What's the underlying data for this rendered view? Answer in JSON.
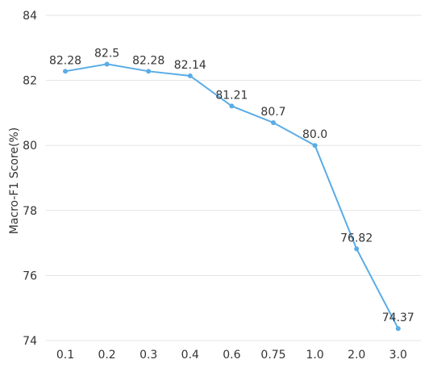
{
  "chart_data": {
    "type": "line",
    "title": "",
    "xlabel": "",
    "ylabel": "Macro-F1 Score(%)",
    "categories": [
      "0.1",
      "0.2",
      "0.3",
      "0.4",
      "0.6",
      "0.75",
      "1.0",
      "2.0",
      "3.0"
    ],
    "series": [
      {
        "values": [
          82.28,
          82.5,
          82.28,
          82.14,
          81.21,
          80.7,
          80.0,
          76.82,
          74.37
        ],
        "data_labels": [
          "82.28",
          "82.5",
          "82.28",
          "82.14",
          "81.21",
          "80.7",
          "80.0",
          "76.82",
          "74.37"
        ],
        "color": "#5aace6"
      }
    ],
    "ylim": [
      74,
      84
    ],
    "yticks": [
      74,
      76,
      78,
      80,
      82,
      84
    ],
    "grid": true,
    "legend": "none"
  }
}
